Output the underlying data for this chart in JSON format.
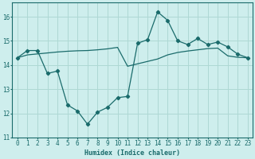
{
  "xlabel": "Humidex (Indice chaleur)",
  "ylabel": "",
  "background_color": "#ceeeed",
  "line_color": "#1a6b6b",
  "grid_color": "#aed8d4",
  "xlim": [
    -0.5,
    23.5
  ],
  "ylim": [
    11,
    16.6
  ],
  "yticks": [
    11,
    12,
    13,
    14,
    15,
    16
  ],
  "xticks": [
    0,
    1,
    2,
    3,
    4,
    5,
    6,
    7,
    8,
    9,
    10,
    11,
    12,
    13,
    14,
    15,
    16,
    17,
    18,
    19,
    20,
    21,
    22,
    23
  ],
  "series1_x": [
    0,
    1,
    2,
    3,
    4,
    5,
    6,
    7,
    8,
    9,
    10,
    11,
    12,
    13,
    14,
    15,
    16,
    17,
    18,
    19,
    20,
    21,
    22,
    23
  ],
  "series1_y": [
    14.3,
    14.6,
    14.6,
    13.65,
    13.75,
    12.35,
    12.1,
    11.55,
    12.05,
    12.25,
    12.65,
    12.7,
    14.9,
    15.05,
    16.2,
    15.85,
    15.0,
    14.85,
    15.1,
    14.85,
    14.95,
    14.75,
    14.45,
    14.3
  ],
  "series2_x": [
    0,
    1,
    2,
    3,
    4,
    5,
    6,
    7,
    8,
    9,
    10,
    11,
    12,
    13,
    14,
    15,
    16,
    17,
    18,
    19,
    20,
    21,
    22,
    23
  ],
  "series2_y": [
    14.3,
    14.42,
    14.46,
    14.5,
    14.54,
    14.57,
    14.59,
    14.6,
    14.63,
    14.67,
    14.73,
    13.95,
    14.05,
    14.15,
    14.25,
    14.42,
    14.52,
    14.58,
    14.63,
    14.68,
    14.7,
    14.38,
    14.32,
    14.3
  ]
}
